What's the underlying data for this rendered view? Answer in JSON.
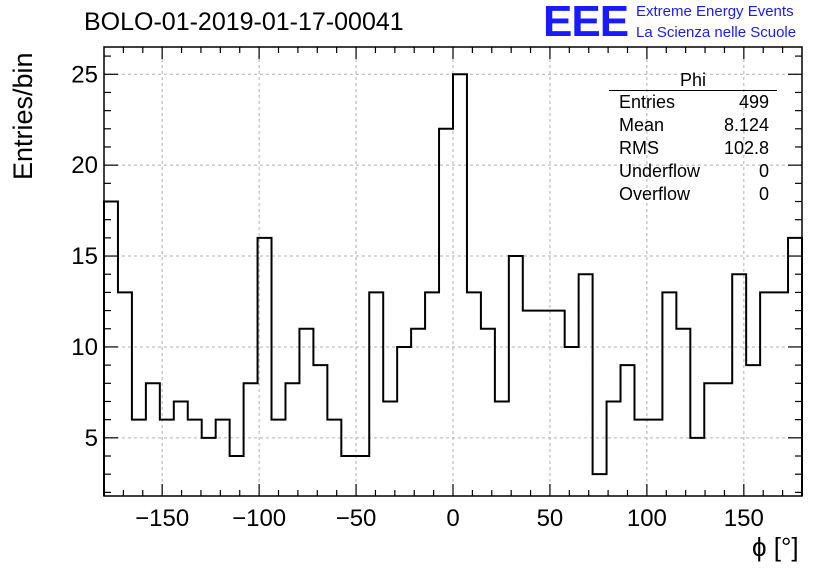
{
  "header": {
    "title": "BOLO-01-2019-01-17-00041",
    "logo_text": "EEE",
    "logo_line1": "Extreme Energy Events",
    "logo_line2": "La Scienza nelle Scuole",
    "logo_color": "#1a1aff"
  },
  "stats_box": {
    "title": "Phi",
    "rows": [
      {
        "label": "Entries",
        "value": "499"
      },
      {
        "label": "Mean",
        "value": "8.124"
      },
      {
        "label": "RMS",
        "value": "102.8"
      },
      {
        "label": "Underflow",
        "value": "0"
      },
      {
        "label": "Overflow",
        "value": "0"
      }
    ]
  },
  "chart_data": {
    "type": "bar",
    "style": "step-histogram",
    "xlabel": "ϕ [°]",
    "ylabel": "Entries/bin",
    "xlim": [
      -180,
      180
    ],
    "ylim": [
      1.8,
      26.5
    ],
    "grid": true,
    "bin_width": 7.2,
    "x_ticks": [
      -150,
      -100,
      -50,
      0,
      50,
      100,
      150
    ],
    "y_ticks": [
      5,
      10,
      15,
      20,
      25
    ],
    "values": [
      18,
      13,
      6,
      8,
      6,
      7,
      6,
      5,
      6,
      4,
      8,
      16,
      6,
      8,
      11,
      9,
      6,
      4,
      4,
      13,
      7,
      10,
      11,
      13,
      22,
      25,
      13,
      11,
      7,
      15,
      12,
      12,
      12,
      10,
      14,
      3,
      7,
      9,
      6,
      6,
      13,
      11,
      5,
      8,
      8,
      14,
      9,
      13,
      13,
      16
    ]
  }
}
